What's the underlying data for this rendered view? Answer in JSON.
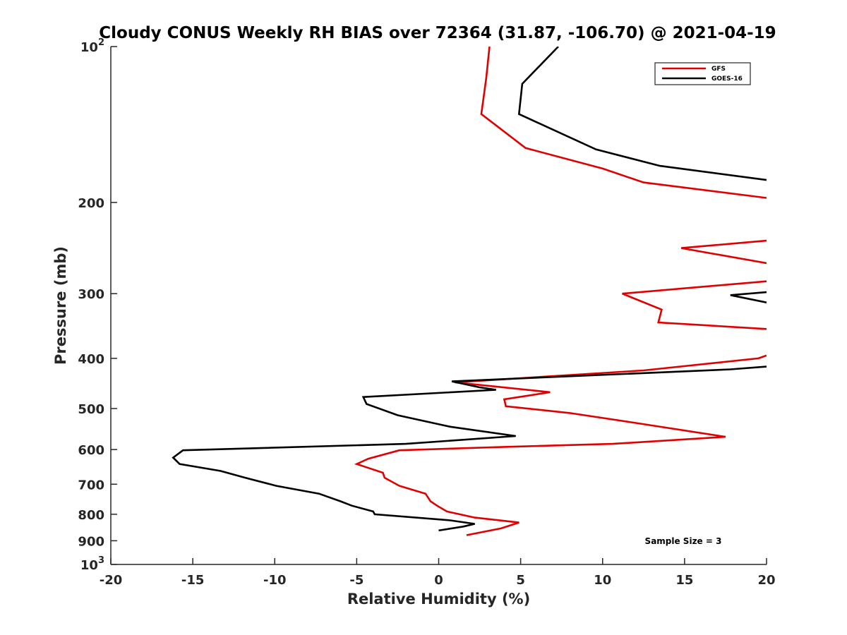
{
  "chart_data": {
    "type": "line",
    "title": "Cloudy CONUS Weekly RH BIAS over 72364 (31.87, -106.70) @ 2021-04-19",
    "xlabel": "Relative Humidity (%)",
    "ylabel": "Pressure (mb)",
    "xlim": [
      -20,
      20
    ],
    "ylim": [
      100,
      1000
    ],
    "y_scale": "log",
    "y_reversed": true,
    "x_ticks": [
      "-20",
      "-15",
      "-10",
      "-5",
      "0",
      "5",
      "10",
      "15",
      "20"
    ],
    "y_ticks": [
      {
        "value": 100,
        "base": "10",
        "exp": "2"
      },
      {
        "value": 200,
        "label": "200"
      },
      {
        "value": 300,
        "label": "300"
      },
      {
        "value": 400,
        "label": "400"
      },
      {
        "value": 500,
        "label": "500"
      },
      {
        "value": 600,
        "label": "600"
      },
      {
        "value": 700,
        "label": "700"
      },
      {
        "value": 800,
        "label": "800"
      },
      {
        "value": 900,
        "label": "900"
      },
      {
        "value": 1000,
        "base": "10",
        "exp": "3"
      }
    ],
    "legend_position": "top-right",
    "annotation": "Sample Size = 3",
    "series": [
      {
        "name": "GFS",
        "color": "#e00000",
        "segments": [
          [
            [
              3.1,
              100
            ],
            [
              2.9,
              115
            ],
            [
              2.6,
              135
            ],
            [
              5.3,
              157
            ],
            [
              10,
              172
            ],
            [
              12.5,
              183
            ],
            [
              20,
              196
            ]
          ],
          [
            [
              20,
              237
            ],
            [
              14.8,
              245
            ],
            [
              20,
              262
            ]
          ],
          [
            [
              20,
              284
            ],
            [
              11.2,
              300
            ],
            [
              13.6,
              322
            ],
            [
              13.4,
              341
            ],
            [
              20,
              351
            ]
          ],
          [
            [
              20,
              395
            ],
            [
              19.5,
              400
            ],
            [
              12.5,
              422
            ],
            [
              1,
              445
            ],
            [
              6.8,
              465
            ],
            [
              4,
              480
            ],
            [
              4.1,
              495
            ],
            [
              8,
              510
            ],
            [
              12,
              533
            ],
            [
              17.5,
              567
            ],
            [
              10.6,
              585
            ],
            [
              4,
              593
            ],
            [
              -2.4,
              602
            ],
            [
              -4.3,
              625
            ],
            [
              -5,
              640
            ],
            [
              -3.4,
              665
            ],
            [
              -3.3,
              680
            ],
            [
              -2.4,
              705
            ],
            [
              -0.8,
              730
            ],
            [
              -0.5,
              755
            ],
            [
              -0.1,
              770
            ],
            [
              0.5,
              790
            ],
            [
              2.2,
              812
            ],
            [
              4.9,
              830
            ],
            [
              3.8,
              852
            ],
            [
              1.7,
              878
            ]
          ]
        ]
      },
      {
        "name": "GOES-16",
        "color": "#000000",
        "segments": [
          [
            [
              7.3,
              100
            ],
            [
              5.1,
              118
            ],
            [
              4.9,
              135
            ],
            [
              9.6,
              158
            ],
            [
              13.5,
              170
            ],
            [
              20,
              181
            ]
          ],
          [
            [
              20,
              298
            ],
            [
              17.8,
              302
            ],
            [
              20,
              312
            ]
          ],
          [
            [
              20,
              415
            ],
            [
              17.8,
              420
            ],
            [
              0.8,
              443
            ],
            [
              2.5,
              455
            ],
            [
              3.5,
              460
            ],
            [
              -4.6,
              475
            ],
            [
              -4.4,
              490
            ],
            [
              -2.5,
              515
            ],
            [
              0.7,
              542
            ],
            [
              4.7,
              565
            ],
            [
              -2,
              585
            ],
            [
              -15.6,
              602
            ],
            [
              -16.2,
              622
            ],
            [
              -15.8,
              640
            ],
            [
              -13.3,
              660
            ],
            [
              -11.8,
              680
            ],
            [
              -9.9,
              705
            ],
            [
              -7.3,
              730
            ],
            [
              -6,
              755
            ],
            [
              -5.3,
              770
            ],
            [
              -4,
              790
            ],
            [
              -3.9,
              800
            ],
            [
              0.7,
              822
            ],
            [
              2.2,
              835
            ],
            [
              1.5,
              845
            ],
            [
              0,
              860
            ]
          ]
        ]
      }
    ]
  }
}
